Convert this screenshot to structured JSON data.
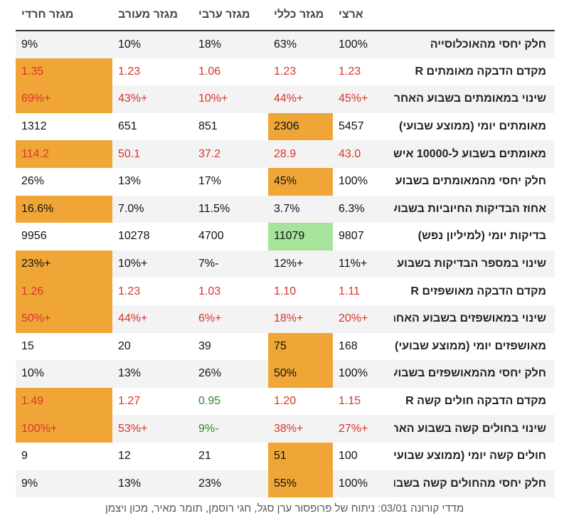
{
  "header": {
    "label": "",
    "columns": [
      "ארצי",
      "מגזר כללי",
      "מגזר ערבי",
      "מגזר מעורב",
      "מגזר חרדי"
    ]
  },
  "colors": {
    "red": "#d9342b",
    "green": "#2b8a2b",
    "orange_highlight": "#f0a637",
    "green_highlight": "#a7e39a"
  },
  "rows": [
    {
      "label": "חלק יחסי מהאוכלוסייה",
      "cells": [
        {
          "v": "100%",
          "c": "dark"
        },
        {
          "v": "63%",
          "c": "dark"
        },
        {
          "v": "18%",
          "c": "dark"
        },
        {
          "v": "10%",
          "c": "dark"
        },
        {
          "v": "9%",
          "c": "dark"
        }
      ]
    },
    {
      "label": "מקדם הדבקה מאומתים R",
      "cells": [
        {
          "v": "1.23",
          "c": "red"
        },
        {
          "v": "1.23",
          "c": "red"
        },
        {
          "v": "1.06",
          "c": "red"
        },
        {
          "v": "1.23",
          "c": "red"
        },
        {
          "v": "1.35",
          "c": "red",
          "h": "orange"
        }
      ]
    },
    {
      "label": "שינוי במאומתים בשבוע האחרון",
      "cells": [
        {
          "v": "+45%",
          "c": "red"
        },
        {
          "v": "+44%",
          "c": "red"
        },
        {
          "v": "+10%",
          "c": "red"
        },
        {
          "v": "+43%",
          "c": "red"
        },
        {
          "v": "+69%",
          "c": "red",
          "h": "orange"
        }
      ]
    },
    {
      "label": "מאומתים יומי (ממוצע שבועי)",
      "cells": [
        {
          "v": "5457",
          "c": "dark"
        },
        {
          "v": "2306",
          "c": "dark",
          "h": "orange"
        },
        {
          "v": "851",
          "c": "dark"
        },
        {
          "v": "651",
          "c": "dark"
        },
        {
          "v": "1312",
          "c": "dark"
        }
      ]
    },
    {
      "label": "מאומתים בשבוע ל-10000 איש",
      "cells": [
        {
          "v": "43.0",
          "c": "red"
        },
        {
          "v": "28.9",
          "c": "red"
        },
        {
          "v": "37.2",
          "c": "red"
        },
        {
          "v": "50.1",
          "c": "red"
        },
        {
          "v": "114.2",
          "c": "red",
          "h": "orange"
        }
      ]
    },
    {
      "label": "חלק יחסי מהמאומתים בשבוע האחרון",
      "cells": [
        {
          "v": "100%",
          "c": "dark"
        },
        {
          "v": "45%",
          "c": "dark",
          "h": "orange"
        },
        {
          "v": "17%",
          "c": "dark"
        },
        {
          "v": "13%",
          "c": "dark"
        },
        {
          "v": "26%",
          "c": "dark"
        }
      ]
    },
    {
      "label": "אחוז הבדיקות החיוביות בשבוע האחרון",
      "cells": [
        {
          "v": "6.3%",
          "c": "dark"
        },
        {
          "v": "3.7%",
          "c": "dark"
        },
        {
          "v": "11.5%",
          "c": "dark"
        },
        {
          "v": "7.0%",
          "c": "dark"
        },
        {
          "v": "16.6%",
          "c": "dark",
          "h": "orange"
        }
      ]
    },
    {
      "label": "בדיקות יומי (למיליון נפש)",
      "cells": [
        {
          "v": "9807",
          "c": "dark"
        },
        {
          "v": "11079",
          "c": "dark",
          "h": "green"
        },
        {
          "v": "4700",
          "c": "dark"
        },
        {
          "v": "10278",
          "c": "dark"
        },
        {
          "v": "9956",
          "c": "dark"
        }
      ]
    },
    {
      "label": "שינוי במספר הבדיקות בשבוע האחרון",
      "cells": [
        {
          "v": "+11%",
          "c": "dark"
        },
        {
          "v": "+12%",
          "c": "dark"
        },
        {
          "v": "-7%",
          "c": "dark"
        },
        {
          "v": "+10%",
          "c": "dark"
        },
        {
          "v": "+23%",
          "c": "dark",
          "h": "orange"
        }
      ]
    },
    {
      "label": "מקדם הדבקה מאושפזים R",
      "cells": [
        {
          "v": "1.11",
          "c": "red"
        },
        {
          "v": "1.10",
          "c": "red"
        },
        {
          "v": "1.03",
          "c": "red"
        },
        {
          "v": "1.23",
          "c": "red"
        },
        {
          "v": "1.26",
          "c": "red",
          "h": "orange"
        }
      ]
    },
    {
      "label": "שינוי במאושפזים בשבוע האחרון",
      "cells": [
        {
          "v": "+20%",
          "c": "red"
        },
        {
          "v": "+18%",
          "c": "red"
        },
        {
          "v": "+6%",
          "c": "red"
        },
        {
          "v": "+44%",
          "c": "red"
        },
        {
          "v": "+50%",
          "c": "red",
          "h": "orange"
        }
      ]
    },
    {
      "label": "מאושפזים יומי (ממוצע שבועי)",
      "cells": [
        {
          "v": "168",
          "c": "dark"
        },
        {
          "v": "75",
          "c": "dark",
          "h": "orange"
        },
        {
          "v": "39",
          "c": "dark"
        },
        {
          "v": "20",
          "c": "dark"
        },
        {
          "v": "15",
          "c": "dark"
        }
      ]
    },
    {
      "label": "חלק יחסי מהמאושפזים בשבוע האחרון",
      "cells": [
        {
          "v": "100%",
          "c": "dark"
        },
        {
          "v": "50%",
          "c": "dark",
          "h": "orange"
        },
        {
          "v": "26%",
          "c": "dark"
        },
        {
          "v": "13%",
          "c": "dark"
        },
        {
          "v": "10%",
          "c": "dark"
        }
      ]
    },
    {
      "label": "מקדם הדבקה חולים קשה R",
      "cells": [
        {
          "v": "1.15",
          "c": "red"
        },
        {
          "v": "1.20",
          "c": "red"
        },
        {
          "v": "0.95",
          "c": "green"
        },
        {
          "v": "1.27",
          "c": "red"
        },
        {
          "v": "1.49",
          "c": "red",
          "h": "orange"
        }
      ]
    },
    {
      "label": "שינוי בחולים קשה בשבוע האחרון",
      "cells": [
        {
          "v": "+27%",
          "c": "red"
        },
        {
          "v": "+38%",
          "c": "red"
        },
        {
          "v": "-9%",
          "c": "green"
        },
        {
          "v": "+53%",
          "c": "red"
        },
        {
          "v": "+100%",
          "c": "red",
          "h": "orange"
        }
      ]
    },
    {
      "label": "חולים קשה יומי (ממוצע שבועי)",
      "cells": [
        {
          "v": "100",
          "c": "dark"
        },
        {
          "v": "51",
          "c": "dark",
          "h": "orange"
        },
        {
          "v": "21",
          "c": "dark"
        },
        {
          "v": "12",
          "c": "dark"
        },
        {
          "v": "9",
          "c": "dark"
        }
      ]
    },
    {
      "label": "חלק יחסי מהחולים קשה בשבוע האחרון",
      "cells": [
        {
          "v": "100%",
          "c": "dark"
        },
        {
          "v": "55%",
          "c": "dark",
          "h": "orange"
        },
        {
          "v": "23%",
          "c": "dark"
        },
        {
          "v": "13%",
          "c": "dark"
        },
        {
          "v": "9%",
          "c": "dark"
        }
      ]
    }
  ],
  "footer": "מדדי קורונה 03/01: ניתוח של פרופסור ערן סגל, חגי רוסמן, תומר מאיר, מכון ויצמן"
}
